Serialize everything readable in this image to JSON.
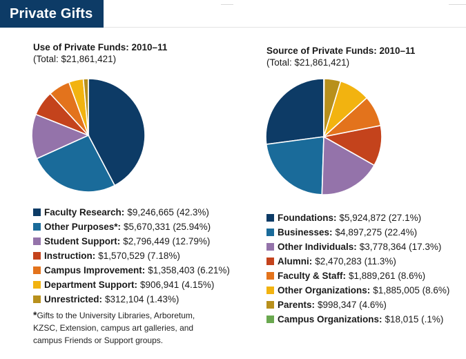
{
  "header": {
    "title": "Private Gifts"
  },
  "chart_data": [
    {
      "type": "pie",
      "title": "Use of Private Funds: 2010–11",
      "subtitle": "(Total: $21,861,421)",
      "slices": [
        {
          "label": "Faculty Research:",
          "value_text": "$9,246,665 (42.3%)",
          "value": 42.3,
          "color": "#0d3b66"
        },
        {
          "label": "Other Purposes*:",
          "value_text": "$5,670,331 (25.94%)",
          "value": 25.94,
          "color": "#1a6b9a"
        },
        {
          "label": "Student Support:",
          "value_text": "$2,796,449 (12.79%)",
          "value": 12.79,
          "color": "#9473aa"
        },
        {
          "label": "Instruction:",
          "value_text": "$1,570,529 (7.18%)",
          "value": 7.18,
          "color": "#c4431c"
        },
        {
          "label": "Campus Improvement:",
          "value_text": "$1,358,403 (6.21%)",
          "value": 6.21,
          "color": "#e3731c"
        },
        {
          "label": "Department Support:",
          "value_text": "$906,941 (4.15%)",
          "value": 4.15,
          "color": "#f2b310"
        },
        {
          "label": "Unrestricted:",
          "value_text": "$312,104 (1.43%)",
          "value": 1.43,
          "color": "#b8901c"
        }
      ]
    },
    {
      "type": "pie",
      "title": "Source of Private Funds: 2010–11",
      "subtitle": "(Total: $21,861,421)",
      "slices": [
        {
          "label": "Foundations:",
          "value_text": "$5,924,872 (27.1%)",
          "value": 27.1,
          "color": "#0d3b66"
        },
        {
          "label": "Businesses:",
          "value_text": "$4,897,275 (22.4%)",
          "value": 22.4,
          "color": "#1a6b9a"
        },
        {
          "label": "Other Individuals:",
          "value_text": "$3,778,364 (17.3%)",
          "value": 17.3,
          "color": "#9473aa"
        },
        {
          "label": "Alumni:",
          "value_text": "$2,470,283 (11.3%)",
          "value": 11.3,
          "color": "#c4431c"
        },
        {
          "label": "Faculty & Staff:",
          "value_text": "$1,889,261 (8.6%)",
          "value": 8.6,
          "color": "#e3731c"
        },
        {
          "label": "Other Organizations:",
          "value_text": "$1,885,005 (8.6%)",
          "value": 8.6,
          "color": "#f2b310"
        },
        {
          "label": "Parents:",
          "value_text": "$998,347 (4.6%)",
          "value": 4.6,
          "color": "#b8901c"
        },
        {
          "label": "Campus Organizations:",
          "value_text": "$18,015 (.1%)",
          "value": 0.1,
          "color": "#6aa84f"
        }
      ]
    }
  ],
  "footnote": {
    "marker": "*",
    "text": "Gifts to the University Libraries, Arboretum, KZSC, Extension, campus art galleries, and campus Friends or Support groups."
  }
}
